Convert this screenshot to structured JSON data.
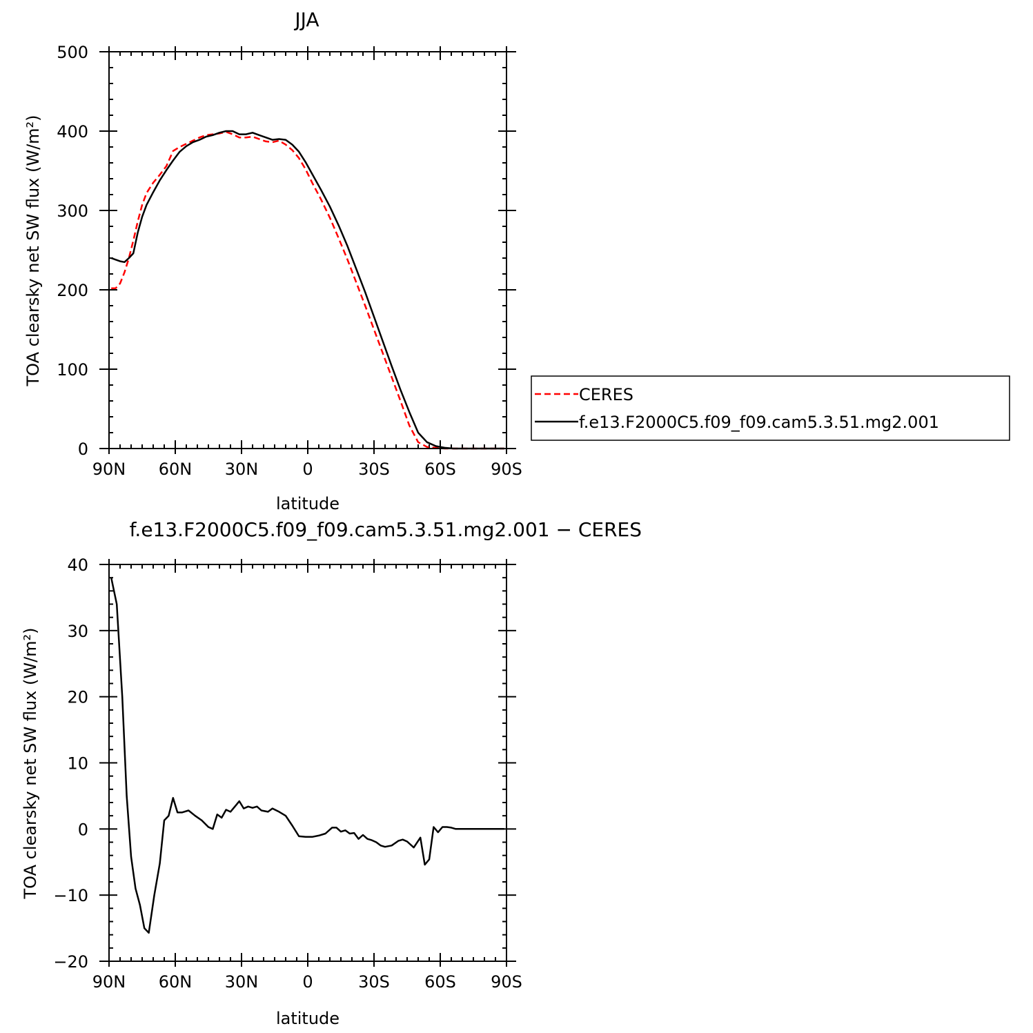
{
  "chart_data": [
    {
      "type": "line",
      "title": "JJA",
      "xlabel": "latitude",
      "ylabel": "TOA clearsky net SW flux (W/m²)",
      "xlim": [
        90,
        -90
      ],
      "ylim": [
        0,
        500
      ],
      "x_ticks": [
        90,
        60,
        30,
        0,
        -30,
        -60,
        -90
      ],
      "x_tick_labels": [
        "90N",
        "60N",
        "30N",
        "0",
        "30S",
        "60S",
        "90S"
      ],
      "y_ticks": [
        0,
        100,
        200,
        300,
        400,
        500
      ],
      "y_tick_labels": [
        "0",
        "100",
        "200",
        "300",
        "400",
        "500"
      ],
      "legend": {
        "position": "right",
        "entries": [
          "CERES",
          "f.e13.F2000C5.f09_f09.cam5.3.51.mg2.001"
        ]
      },
      "series": [
        {
          "name": "CERES",
          "color": "#ff0000",
          "dash": true,
          "x": [
            89,
            87,
            85,
            83,
            81,
            79,
            77,
            75,
            73,
            70,
            67,
            64,
            61,
            58,
            55,
            52,
            49,
            46,
            43,
            40,
            37,
            34,
            31,
            28,
            25,
            22,
            19,
            16,
            13,
            10,
            7,
            4,
            1,
            -2,
            -6,
            -10,
            -14,
            -18,
            -22,
            -26,
            -30,
            -34,
            -38,
            -42,
            -46,
            -50,
            -54,
            -58,
            -62,
            -66,
            -70,
            -74,
            -78,
            -82,
            -86,
            -89
          ],
          "values": [
            202,
            202,
            208,
            222,
            240,
            262,
            286,
            307,
            322,
            335,
            345,
            356,
            375,
            380,
            384,
            388,
            392,
            395,
            396,
            397,
            399,
            396,
            392,
            392,
            393,
            390,
            387,
            386,
            388,
            383,
            376,
            366,
            352,
            335,
            314,
            291,
            265,
            238,
            209,
            180,
            150,
            120,
            90,
            60,
            29,
            8,
            2,
            1,
            0,
            0,
            0,
            0,
            0,
            0,
            0,
            0
          ]
        },
        {
          "name": "f.e13.F2000C5.f09_f09.cam5.3.51.mg2.001",
          "color": "#000000",
          "dash": false,
          "x": [
            89,
            87,
            85,
            83,
            81,
            79,
            77,
            75,
            73,
            70,
            67,
            64,
            61,
            58,
            55,
            52,
            49,
            46,
            43,
            40,
            37,
            34,
            31,
            28,
            25,
            22,
            19,
            16,
            13,
            10,
            7,
            4,
            1,
            -2,
            -6,
            -10,
            -14,
            -18,
            -22,
            -26,
            -30,
            -34,
            -38,
            -42,
            -46,
            -50,
            -54,
            -58,
            -62,
            -66,
            -70,
            -74,
            -78,
            -82,
            -86,
            -89
          ],
          "values": [
            240,
            238,
            236,
            235,
            240,
            246,
            272,
            292,
            307,
            323,
            338,
            351,
            363,
            374,
            381,
            386,
            389,
            393,
            395,
            398,
            400,
            400,
            396,
            396,
            398,
            395,
            392,
            389,
            390,
            389,
            383,
            374,
            361,
            346,
            326,
            305,
            281,
            255,
            226,
            197,
            166,
            135,
            104,
            74,
            46,
            20,
            8,
            3,
            1,
            0,
            0,
            0,
            0,
            0,
            0,
            0
          ]
        }
      ]
    },
    {
      "type": "line",
      "title": "f.e13.F2000C5.f09_f09.cam5.3.51.mg2.001 − CERES",
      "xlabel": "latitude",
      "ylabel": "TOA clearsky net SW flux (W/m²)",
      "xlim": [
        90,
        -90
      ],
      "ylim": [
        -20,
        40
      ],
      "x_ticks": [
        90,
        60,
        30,
        0,
        -30,
        -60,
        -90
      ],
      "x_tick_labels": [
        "90N",
        "60N",
        "30N",
        "0",
        "30S",
        "60S",
        "90S"
      ],
      "y_ticks": [
        -20,
        -10,
        0,
        10,
        20,
        30,
        40
      ],
      "y_tick_labels": [
        "−20",
        "−10",
        "0",
        "10",
        "20",
        "30",
        "40"
      ],
      "series": [
        {
          "color": "#000000",
          "x": [
            89,
            86.5,
            84,
            82,
            80,
            78,
            76,
            74,
            72,
            69.5,
            67,
            65,
            63,
            61,
            59,
            57,
            54,
            51,
            48,
            45,
            43,
            41,
            39,
            37,
            35,
            33,
            31,
            29,
            27,
            25,
            23,
            21,
            18,
            16,
            13,
            10,
            7,
            4,
            1,
            -2,
            -5,
            -8,
            -11,
            -13,
            -15,
            -17,
            -19,
            -21,
            -23,
            -25,
            -27,
            -29,
            -31,
            -33,
            -35,
            -38,
            -41,
            -43,
            -45,
            -48,
            -51,
            -53,
            -55,
            -57,
            -59,
            -61,
            -63,
            -65,
            -67,
            -70,
            -72,
            -75,
            -78,
            -82,
            -86,
            -89
          ],
          "values": [
            38,
            34,
            20,
            5,
            -4.2,
            -9,
            -11.5,
            -15,
            -15.7,
            -10,
            -5.2,
            1.3,
            2.0,
            4.7,
            2.5,
            2.5,
            2.8,
            2.0,
            1.3,
            0.3,
            0,
            2.2,
            1.7,
            2.9,
            2.6,
            3.4,
            4.2,
            3.1,
            3.4,
            3.2,
            3.4,
            2.8,
            2.6,
            3.1,
            2.6,
            2.0,
            0.5,
            -1.1,
            -1.2,
            -1.2,
            -1.0,
            -0.7,
            0.2,
            0.2,
            -0.4,
            -0.2,
            -0.7,
            -0.6,
            -1.5,
            -0.9,
            -1.5,
            -1.7,
            -2.0,
            -2.5,
            -2.7,
            -2.5,
            -1.8,
            -1.6,
            -1.9,
            -2.8,
            -1.3,
            -5.4,
            -4.6,
            0.3,
            -0.5,
            0.3,
            0.3,
            0.2,
            0,
            0,
            0,
            0,
            0,
            0,
            0,
            0
          ]
        }
      ]
    }
  ]
}
